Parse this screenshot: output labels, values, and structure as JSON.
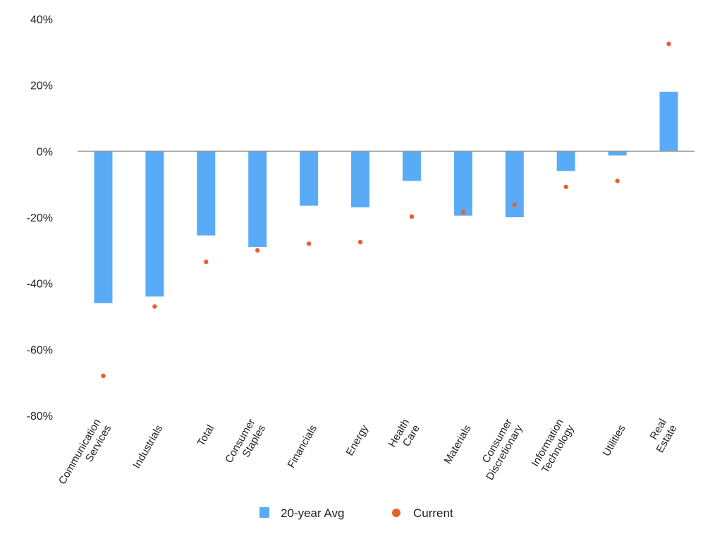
{
  "chart_data": {
    "type": "bar",
    "title": "",
    "xlabel": "",
    "ylabel": "",
    "ylim": [
      -80,
      40
    ],
    "yticks": [
      40,
      20,
      0,
      -20,
      -40,
      -60,
      -80
    ],
    "ytick_labels": [
      "40%",
      "20%",
      "0%",
      "-20%",
      "-40%",
      "-60%",
      "-80%"
    ],
    "grid": false,
    "legend_position": "bottom-center",
    "categories": [
      [
        "Communication",
        "Services"
      ],
      [
        "Industrials"
      ],
      [
        "Total"
      ],
      [
        "Consumer",
        "Staples"
      ],
      [
        "Financials"
      ],
      [
        "Energy"
      ],
      [
        "Health",
        "Care"
      ],
      [
        "Materials"
      ],
      [
        "Consumer",
        "Discretionary"
      ],
      [
        "Information",
        "Technology"
      ],
      [
        "Utilities"
      ],
      [
        "Real",
        "Estate"
      ]
    ],
    "series": [
      {
        "name": "20-year Avg",
        "kind": "bar",
        "color": "#5aabf5",
        "values": [
          -46,
          -44,
          -25.5,
          -29,
          -16.5,
          -17,
          -9,
          -19.5,
          -20,
          -6,
          -1.3,
          18
        ]
      },
      {
        "name": "Current",
        "kind": "dot",
        "color": "#e8612c",
        "values": [
          -68,
          -47,
          -33.5,
          -30,
          -28,
          -27.5,
          -19.8,
          -18.5,
          -16.2,
          -10.8,
          -9,
          32.5
        ]
      }
    ]
  }
}
